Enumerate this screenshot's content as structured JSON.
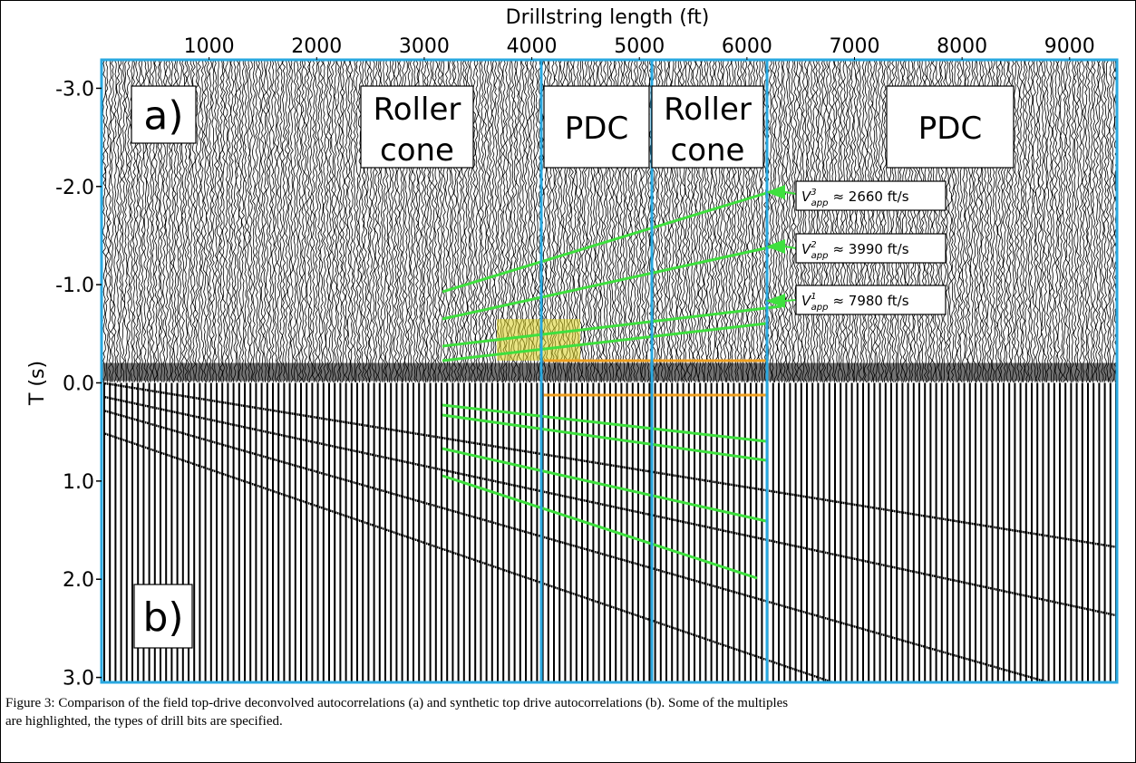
{
  "chart_data": {
    "type": "seismic",
    "xlabel": "Drillstring length (ft)",
    "ylabel": "T (s)",
    "xlim": [
      0,
      9440
    ],
    "ylim": [
      -3.29,
      3.05
    ],
    "xticks": [
      1000,
      2000,
      3000,
      4000,
      5000,
      6000,
      7000,
      8000,
      9000
    ],
    "yticks": [
      {
        "value": -3,
        "label": "-3.0"
      },
      {
        "value": -2,
        "label": "-2.0"
      },
      {
        "value": -1,
        "label": "-1.0"
      },
      {
        "value": 0,
        "label": "0.0"
      },
      {
        "value": 1,
        "label": "1.0"
      },
      {
        "value": 2,
        "label": "2.0"
      },
      {
        "value": 3,
        "label": "3.0"
      }
    ],
    "panel_labels": [
      "a)",
      "b)"
    ],
    "bit_labels": [
      [
        "Roller",
        "cone"
      ],
      [
        "PDC"
      ],
      [
        "Roller",
        "cone"
      ],
      [
        "PDC"
      ]
    ],
    "velocities": [
      {
        "symbol": "V",
        "superscript": "3",
        "subscript": "app",
        "text": "≈ 2660 ft/s"
      },
      {
        "symbol": "V",
        "superscript": "2",
        "subscript": "app",
        "text": "≈ 3990 ft/s"
      },
      {
        "symbol": "V",
        "superscript": "1",
        "subscript": "app",
        "text": "≈ 7980 ft/s"
      }
    ]
  },
  "caption": [
    "Figure 3: Comparison of the field top-drive deconvolved autocorrelations (a) and synthetic top drive autocorrelations (b). Some of the multiples",
    "are highlighted, the types of drill bits are specified."
  ]
}
